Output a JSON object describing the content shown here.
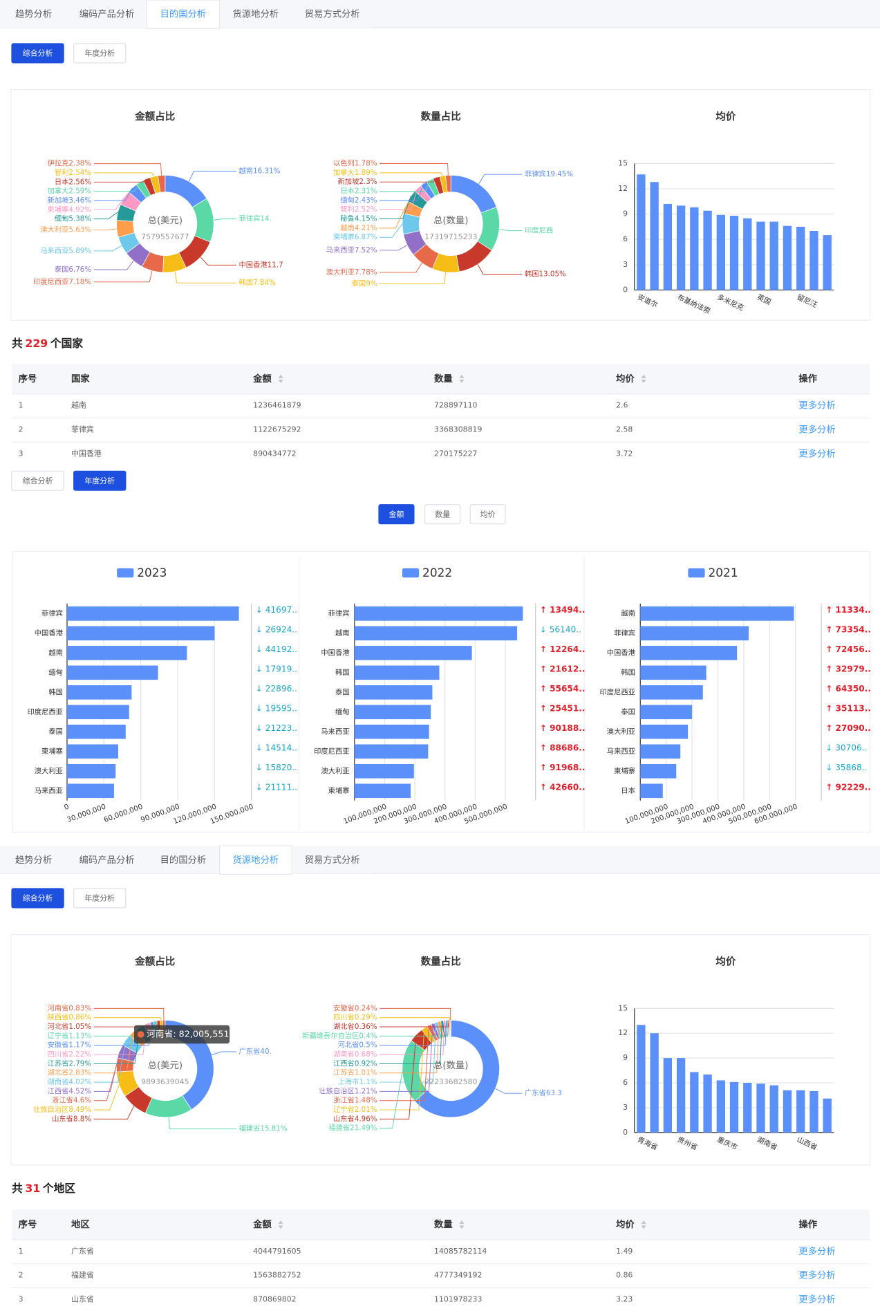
{
  "palette": [
    "#5b8ff9",
    "#5ad8a6",
    "#c8392b",
    "#f6bd16",
    "#e8684a",
    "#9270ca",
    "#6dc8ec",
    "#ff9d4d",
    "#269a99",
    "#ff99c3"
  ],
  "overview_country": {
    "tabs": [
      "趋势分析",
      "编码产品分析",
      "目的国分析",
      "货源地分析",
      "贸易方式分析"
    ],
    "active_tab": 2,
    "buttons": [
      "综合分析",
      "年度分析"
    ],
    "active_button": 0,
    "pies": [
      {
        "type": "pie",
        "title": "金额占比",
        "center_label": "总(美元)",
        "center_value": 7579557677,
        "items": [
          {
            "label": "越南16.31%",
            "value": 16.31
          },
          {
            "label": "菲律宾14.",
            "value": 14.81
          },
          {
            "label": "中国香港11.7",
            "value": 11.75
          },
          {
            "label": "韩国7.84%",
            "value": 7.84
          },
          {
            "label": "印度尼西亚7.18%",
            "value": 7.18
          },
          {
            "label": "泰国6.76%",
            "value": 6.76
          },
          {
            "label": "马来西亚5.89%",
            "value": 5.89
          },
          {
            "label": "澳大利亚5.63%",
            "value": 5.63
          },
          {
            "label": "缅甸5.38%",
            "value": 5.38
          },
          {
            "label": "柬埔寨4.92%",
            "value": 4.92
          },
          {
            "label": "新加坡3.46%",
            "value": 3.46
          },
          {
            "label": "加拿大2.59%",
            "value": 2.59
          },
          {
            "label": "日本2.56%",
            "value": 2.56
          },
          {
            "label": "智利2.54%",
            "value": 2.54
          },
          {
            "label": "伊拉克2.38%",
            "value": 2.38
          }
        ]
      },
      {
        "type": "pie",
        "title": "数量占比",
        "center_label": "总(数量)",
        "center_value": 17319715233,
        "items": [
          {
            "label": "菲律宾19.45%",
            "value": 19.45
          },
          {
            "label": "印度尼西",
            "value": 14.74
          },
          {
            "label": "韩国13.05%",
            "value": 13.05
          },
          {
            "label": "泰国9%",
            "value": 9
          },
          {
            "label": "澳大利亚7.78%",
            "value": 7.78
          },
          {
            "label": "马来西亚7.52%",
            "value": 7.52
          },
          {
            "label": "柬埔寨6.87%",
            "value": 6.87
          },
          {
            "label": "越南4.21%",
            "value": 4.21
          },
          {
            "label": "秘鲁4.15%",
            "value": 4.15
          },
          {
            "label": "智利2.52%",
            "value": 2.52
          },
          {
            "label": "缅甸2.43%",
            "value": 2.43
          },
          {
            "label": "日本2.31%",
            "value": 2.31
          },
          {
            "label": "新加坡2.3%",
            "value": 2.3
          },
          {
            "label": "加拿大1.89%",
            "value": 1.89
          },
          {
            "label": "以色列1.78%",
            "value": 1.78
          }
        ]
      }
    ],
    "bar": {
      "type": "bar",
      "title": "均价",
      "categories": [
        "安道尔",
        null,
        null,
        "布基纳法索",
        null,
        null,
        "多米尼克",
        null,
        null,
        "英国",
        null,
        null,
        "留尼汪",
        null,
        null
      ],
      "values": [
        13.7,
        12.8,
        10.2,
        10.0,
        9.8,
        9.4,
        8.9,
        8.8,
        8.5,
        8.1,
        8.1,
        7.6,
        7.5,
        7.0,
        6.5
      ],
      "color": "#5b8ff9",
      "ylim": [
        0,
        15
      ],
      "yticks": [
        0,
        3,
        6,
        9,
        12,
        15
      ],
      "grid": true
    },
    "summary": {
      "prefix": "共",
      "count": 229,
      "suffix": "个国家"
    },
    "table": {
      "columns": [
        "序号",
        "国家",
        "金额",
        "数量",
        "均价",
        "操作"
      ],
      "rows": [
        [
          1,
          "越南",
          1236461879,
          728897110,
          2.6,
          "更多分析"
        ],
        [
          2,
          "菲律宾",
          1122675292,
          3368308819,
          2.58,
          "更多分析"
        ],
        [
          3,
          "中国香港",
          890434772,
          270175227,
          3.72,
          "更多分析"
        ]
      ]
    }
  },
  "yearly": {
    "buttons": [
      "综合分析",
      "年度分析"
    ],
    "active_button": 1,
    "metrics": [
      "金额",
      "数量",
      "均价"
    ],
    "active_metric": 0,
    "charts": [
      {
        "type": "hbar",
        "legend": "2023",
        "color": "#5b8ff9",
        "categories": [
          "菲律宾",
          "中国香港",
          "越南",
          "缅甸",
          "韩国",
          "印度尼西亚",
          "泰国",
          "柬埔寨",
          "澳大利亚",
          "马来西亚"
        ],
        "values": [
          139800000,
          120000000,
          97500000,
          74000000,
          52500000,
          50500000,
          47700000,
          41600000,
          39500000,
          38200000
        ],
        "xlim": [
          0,
          150000000
        ],
        "xticks": [
          0,
          {
            "value": 30000000,
            "label": "30,000,000"
          },
          {
            "value": 60000000,
            "label": "60,000,000"
          },
          {
            "value": 90000000,
            "label": "90,000,000"
          },
          {
            "value": 120000000,
            "label": "120,000,000"
          },
          {
            "value": 150000000,
            "label": "150,000,000"
          }
        ],
        "changes": [
          "↓ 41697..",
          "↓ 26924..",
          "↓ 44192..",
          "↓ 17919..",
          "↓ 22896..",
          "↓ 19595..",
          "↓ 21223..",
          "↓ 14514..",
          "↓ 15820..",
          "↓ 21111.."
        ]
      },
      {
        "type": "hbar",
        "legend": "2022",
        "color": "#5b8ff9",
        "categories": [
          "菲律宾",
          "越南",
          "中国香港",
          "韩国",
          "泰国",
          "缅甸",
          "马来西亚",
          "印度尼西亚",
          "澳大利亚",
          "柬埔寨"
        ],
        "values": [
          558000000,
          539000000,
          389000000,
          281000000,
          258000000,
          253000000,
          247000000,
          244000000,
          197000000,
          186000000
        ],
        "xlim": [
          0,
          600000000
        ],
        "xticks": [
          {
            "value": 100000000,
            "label": "100,000,000"
          },
          {
            "value": 200000000,
            "label": "200,000,000"
          },
          {
            "value": 300000000,
            "label": "300,000,000"
          },
          {
            "value": 400000000,
            "label": "400,000,000"
          },
          {
            "value": 500000000,
            "label": "500,000,000"
          }
        ],
        "changes": [
          "↑ 13494..",
          "↓ 56140..",
          "↑ 12264..",
          "↑ 21612..",
          "↑ 55654..",
          "↑ 25451..",
          "↑ 90188..",
          "↑ 88686..",
          "↑ 91968..",
          "↑ 42660.."
        ]
      },
      {
        "type": "hbar",
        "legend": "2021",
        "color": "#5b8ff9",
        "categories": [
          "越南",
          "菲律宾",
          "中国香港",
          "韩国",
          "印度尼西亚",
          "泰国",
          "澳大利亚",
          "马来西亚",
          "柬埔寨",
          "日本"
        ],
        "values": [
          594000000,
          419000000,
          374000000,
          255000000,
          242000000,
          200000000,
          184000000,
          155000000,
          139000000,
          87000000
        ],
        "xlim": [
          0,
          700000000
        ],
        "xticks": [
          {
            "value": 100000000,
            "label": "100,000,000"
          },
          {
            "value": 200000000,
            "label": "200,000,000"
          },
          {
            "value": 300000000,
            "label": "300,000,000"
          },
          {
            "value": 400000000,
            "label": "400,000,000"
          },
          {
            "value": 500000000,
            "label": "500,000,000"
          },
          {
            "value": 600000000,
            "label": "600,000,000"
          }
        ],
        "changes": [
          "↑ 11334..",
          "↑ 73354..",
          "↑ 72456..",
          "↑ 32979..",
          "↑ 64350..",
          "↑ 35113..",
          "↑ 27090..",
          "↓ 30706..",
          "↓ 35868..",
          "↑ 92229.."
        ]
      }
    ]
  },
  "overview_region": {
    "tabs": [
      "趋势分析",
      "编码产品分析",
      "目的国分析",
      "货源地分析",
      "贸易方式分析"
    ],
    "active_tab": 3,
    "buttons": [
      "综合分析",
      "年度分析"
    ],
    "active_button": 0,
    "pies": [
      {
        "type": "pie",
        "title": "金额占比",
        "center_label": "总(美元)",
        "center_value": 9893639045,
        "tooltip": "河南省: 82,005,551",
        "items": [
          {
            "label": "广东省40.",
            "value": 40.88
          },
          {
            "label": "福建省15.81%",
            "value": 15.81
          },
          {
            "label": "山东省8.8%",
            "value": 8.8
          },
          {
            "label": "壮族自治区8.49%",
            "value": 8.49
          },
          {
            "label": "浙江省4.6%",
            "value": 4.6
          },
          {
            "label": "江西省4.52%",
            "value": 4.52
          },
          {
            "label": "湖南省4.02%",
            "value": 4.02
          },
          {
            "label": "湖北省2.83%",
            "value": 2.83
          },
          {
            "label": "江苏省2.79%",
            "value": 2.79
          },
          {
            "label": "四川省2.22%",
            "value": 2.22
          },
          {
            "label": "安徽省1.17%",
            "value": 1.17
          },
          {
            "label": "辽宁省1.13%",
            "value": 1.13
          },
          {
            "label": "河北省1.05%",
            "value": 1.05
          },
          {
            "label": "陕西省0.86%",
            "value": 0.86
          },
          {
            "label": "河南省0.83%",
            "value": 0.83
          }
        ]
      },
      {
        "type": "pie",
        "title": "数量占比",
        "center_label": "总(数量)",
        "center_value": 22233682580,
        "items": [
          {
            "label": "广东省63.3",
            "value": 63.35
          },
          {
            "label": "福建省21.49%",
            "value": 21.49
          },
          {
            "label": "山东省4.96%",
            "value": 4.96
          },
          {
            "label": "辽宁省2.01%",
            "value": 2.01
          },
          {
            "label": "浙江省1.48%",
            "value": 1.48
          },
          {
            "label": "壮族自治区1.21%",
            "value": 1.21
          },
          {
            "label": "上海市1.1%",
            "value": 1.1
          },
          {
            "label": "江苏省1.01%",
            "value": 1.01
          },
          {
            "label": "江西省0.92%",
            "value": 0.92
          },
          {
            "label": "湖南省0.68%",
            "value": 0.68
          },
          {
            "label": "河北省0.5%",
            "value": 0.5
          },
          {
            "label": "新疆维吾尔自治区0.4%",
            "value": 0.4
          },
          {
            "label": "湖北省0.36%",
            "value": 0.36
          },
          {
            "label": "四川省0.29%",
            "value": 0.29
          },
          {
            "label": "安徽省0.24%",
            "value": 0.24
          }
        ]
      }
    ],
    "bar": {
      "type": "bar",
      "title": "均价",
      "categories": [
        "青海省",
        null,
        null,
        "贵州省",
        null,
        null,
        "重庆市",
        null,
        null,
        "湖南省",
        null,
        null,
        "山西省",
        null,
        null
      ],
      "values": [
        13,
        12,
        9,
        9,
        7.3,
        7,
        6.3,
        6.1,
        6,
        5.9,
        5.7,
        5.1,
        5.1,
        5,
        4.1
      ],
      "color": "#5b8ff9",
      "ylim": [
        0,
        15
      ],
      "yticks": [
        0,
        3,
        6,
        9,
        12,
        15
      ],
      "grid": true
    },
    "summary": {
      "prefix": "共",
      "count": 31,
      "suffix": "个地区"
    },
    "table": {
      "columns": [
        "序号",
        "地区",
        "金额",
        "数量",
        "均价",
        "操作"
      ],
      "rows": [
        [
          1,
          "广东省",
          4044791605,
          14085782114,
          1.49,
          "更多分析"
        ],
        [
          2,
          "福建省",
          1563882752,
          4777349192,
          0.86,
          "更多分析"
        ],
        [
          3,
          "山东省",
          870869802,
          1101978233,
          3.23,
          "更多分析"
        ]
      ]
    }
  }
}
